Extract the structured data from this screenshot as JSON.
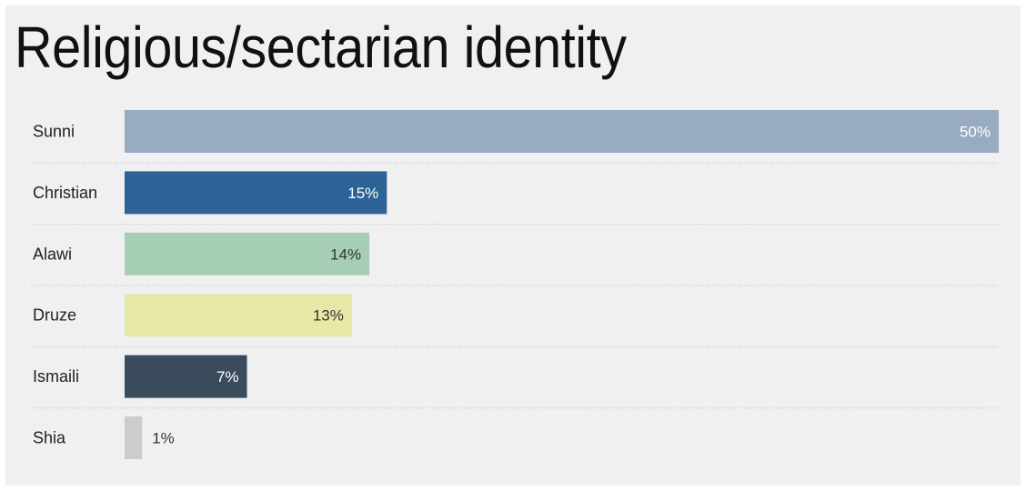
{
  "chart_data": {
    "type": "bar",
    "orientation": "horizontal",
    "title": "Religious/sectarian identity",
    "categories": [
      "Sunni",
      "Christian",
      "Alawi",
      "Druze",
      "Ismaili",
      "Shia"
    ],
    "values": [
      50,
      15,
      14,
      13,
      7,
      1
    ],
    "value_labels": [
      "50%",
      "15%",
      "14%",
      "13%",
      "7%",
      "1%"
    ],
    "colors": [
      "#98abc0",
      "#2d6297",
      "#a6ceb4",
      "#e7e8a6",
      "#3a4b5c",
      "#cccccc"
    ],
    "label_colors": [
      "#ffffff",
      "#ffffff",
      "#333333",
      "#333333",
      "#ffffff",
      "#333333"
    ],
    "xlim": [
      0,
      50
    ],
    "legend": "none",
    "grid": false
  }
}
